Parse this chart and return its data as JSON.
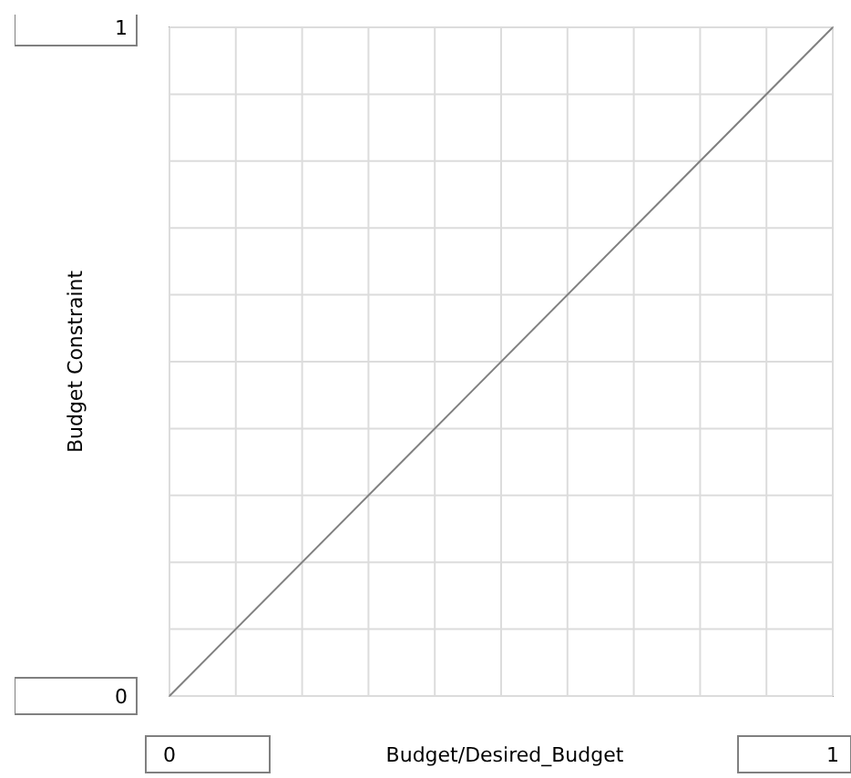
{
  "chart_data": {
    "type": "line",
    "xlabel": "Budget/Desired_Budget",
    "ylabel": "Budget Constraint",
    "x": [
      0,
      1
    ],
    "series": [
      {
        "color": "#808080",
        "values": [
          0,
          1
        ]
      }
    ],
    "xlim": [
      0,
      1
    ],
    "ylim": [
      0,
      1
    ],
    "xticks": [
      0,
      {
        "value": 0.1,
        "label": null
      },
      {
        "value": 0.2,
        "label": null
      },
      {
        "value": 0.3,
        "label": null
      },
      {
        "value": 0.4,
        "label": null
      },
      {
        "value": 0.5,
        "label": null
      },
      {
        "value": 0.6,
        "label": null
      },
      {
        "value": 0.7,
        "label": null
      },
      {
        "value": 0.8,
        "label": null
      },
      {
        "value": 0.9,
        "label": null
      },
      1
    ],
    "yticks": [
      0,
      {
        "value": 0.1,
        "label": null
      },
      {
        "value": 0.2,
        "label": null
      },
      {
        "value": 0.3,
        "label": null
      },
      {
        "value": 0.4,
        "label": null
      },
      {
        "value": 0.5,
        "label": null
      },
      {
        "value": 0.6,
        "label": null
      },
      {
        "value": 0.7,
        "label": null
      },
      {
        "value": 0.8,
        "label": null
      },
      {
        "value": 0.9,
        "label": null
      },
      1
    ],
    "grid": true,
    "marker": "none",
    "line_style": "solid"
  }
}
